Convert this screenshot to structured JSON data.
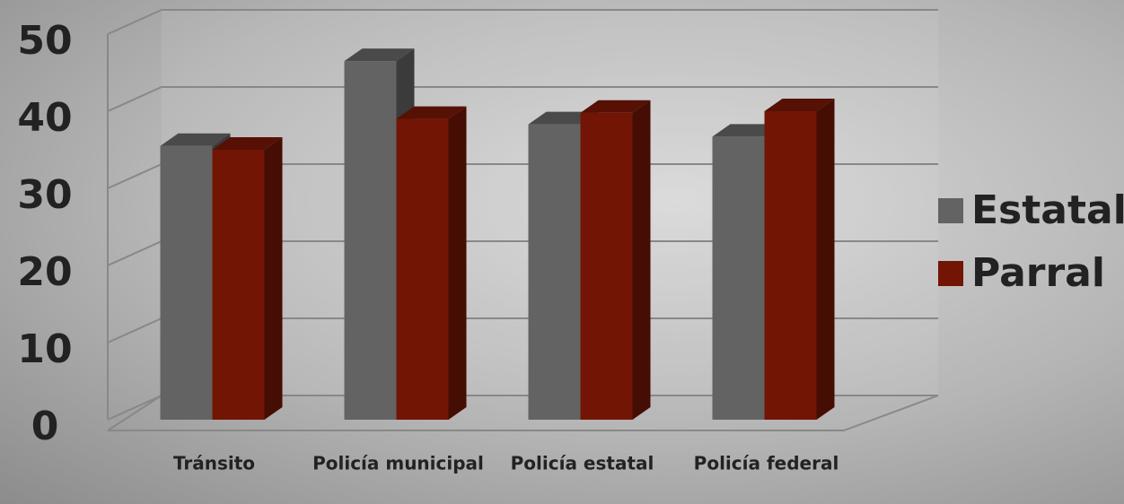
{
  "chart_data": {
    "type": "bar3d",
    "categories": [
      "Tránsito",
      "Policía municipal",
      "Policía estatal",
      "Policía federal"
    ],
    "series": [
      {
        "name": "Estatal",
        "color": "#636363",
        "values": [
          35.5,
          46.5,
          38.3,
          36.7
        ]
      },
      {
        "name": "Parral",
        "color": "#731505",
        "values": [
          35,
          39,
          39.8,
          40
        ]
      }
    ],
    "ylim": [
      0,
      50
    ],
    "yticks": [
      0,
      10,
      20,
      30,
      40,
      50
    ],
    "grid": true,
    "legend": "right"
  }
}
